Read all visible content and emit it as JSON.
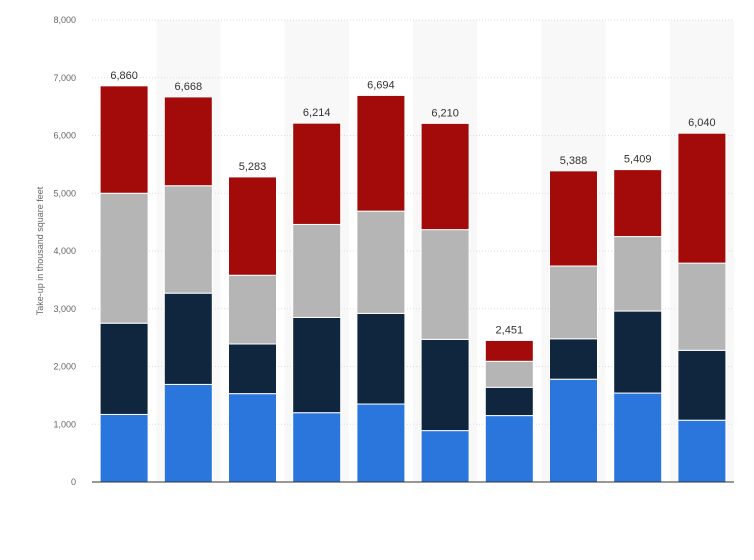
{
  "chart_data": {
    "type": "bar",
    "stacked": true,
    "ylabel": "Take-up in thousand square feet",
    "ylim": [
      0,
      8000
    ],
    "yticks": [
      0,
      1000,
      2000,
      3000,
      4000,
      5000,
      6000,
      7000,
      8000
    ],
    "ytick_labels": [
      "0",
      "1,000",
      "2,000",
      "3,000",
      "4,000",
      "5,000",
      "6,000",
      "7,000",
      "8,000"
    ],
    "grid": true,
    "categories": [
      "",
      "",
      "",
      "",
      "",
      "",
      "",
      "",
      "",
      ""
    ],
    "series": [
      {
        "color": "#2a76dd",
        "values": [
          1170,
          1690,
          1530,
          1200,
          1350,
          890,
          1150,
          1780,
          1540,
          1070
        ]
      },
      {
        "color": "#10263f",
        "values": [
          1580,
          1580,
          860,
          1650,
          1570,
          1580,
          490,
          700,
          1420,
          1210
        ]
      },
      {
        "color": "#b5b5b5",
        "values": [
          2250,
          1860,
          1190,
          1610,
          1770,
          1900,
          450,
          1260,
          1290,
          1510
        ]
      },
      {
        "color": "#a30a0a",
        "values": [
          1860,
          1538,
          1703,
          1754,
          2004,
          1840,
          361,
          1648,
          1159,
          2250
        ]
      }
    ],
    "totals": [
      6860,
      6668,
      5283,
      6214,
      6694,
      6210,
      2451,
      5388,
      5409,
      6040
    ],
    "total_labels": [
      "6,860",
      "6,668",
      "5,283",
      "6,214",
      "6,694",
      "6,210",
      "2,451",
      "5,388",
      "5,409",
      "6,040"
    ]
  }
}
